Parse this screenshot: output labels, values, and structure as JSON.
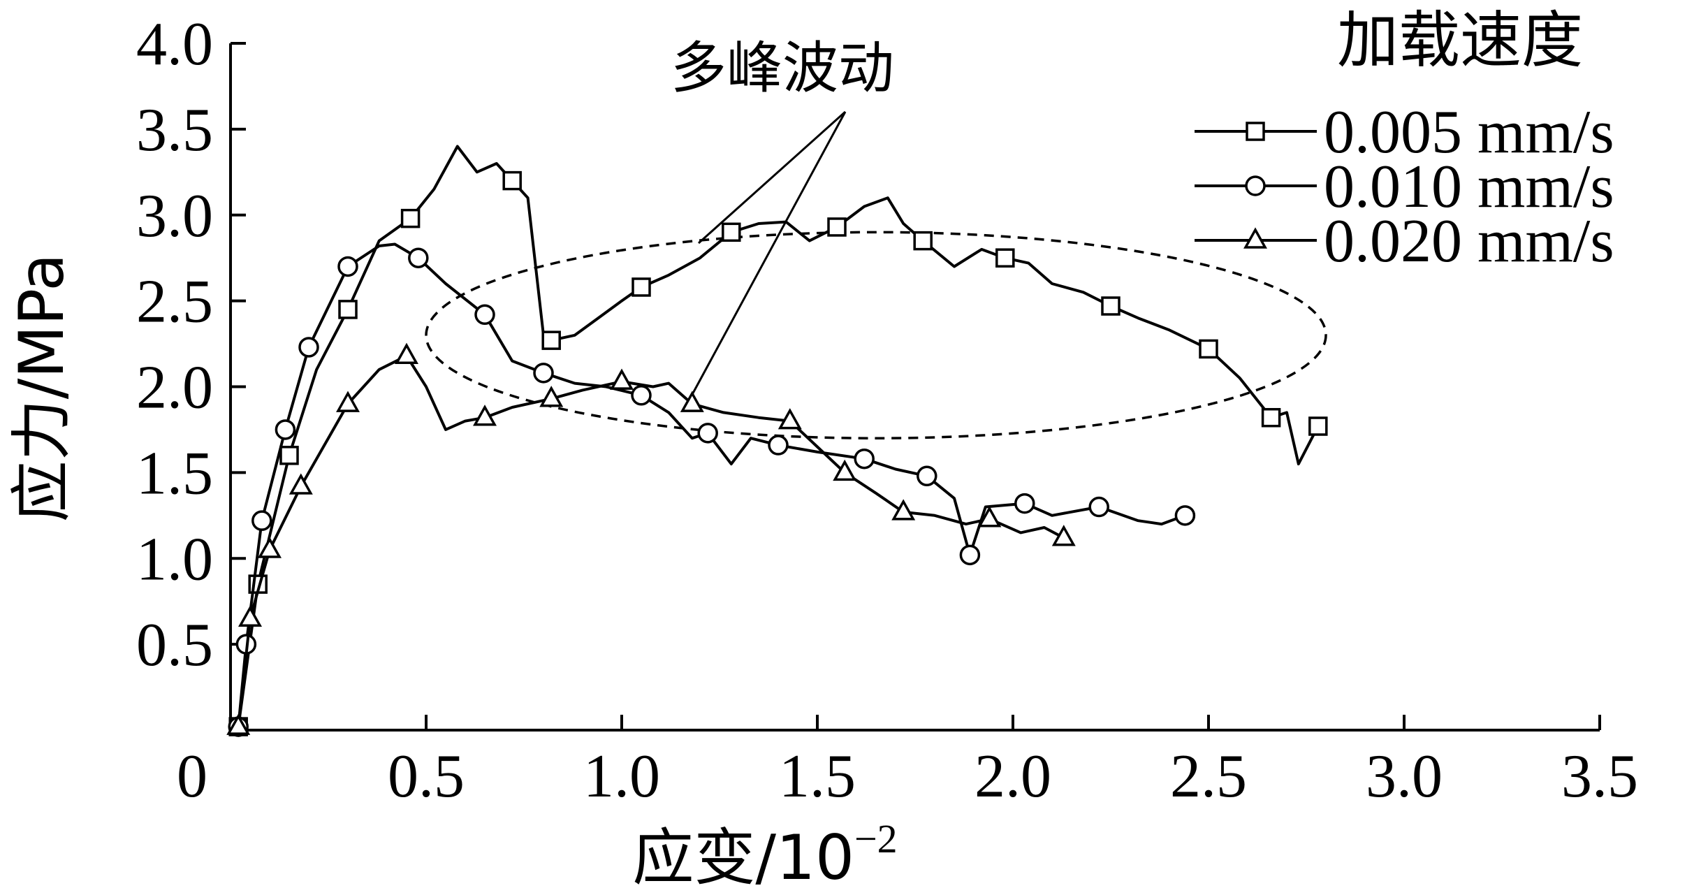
{
  "chart_data": {
    "type": "line",
    "xlabel": "应变/10",
    "xlabel_exp": "−2",
    "ylabel": "应力/MPa",
    "xlim": [
      0,
      3.5
    ],
    "ylim": [
      0,
      4.0
    ],
    "xticks": [
      "0",
      "0.5",
      "1.0",
      "1.5",
      "2.0",
      "2.5",
      "3.0",
      "3.5"
    ],
    "yticks": [
      "0.5",
      "1.0",
      "1.5",
      "2.0",
      "2.5",
      "3.0",
      "3.5",
      "4.0"
    ],
    "grid": false,
    "legend_title": "加载速度",
    "legend_position": "top-right",
    "annotation": "多峰波动",
    "series": [
      {
        "name": "0.005 mm/s",
        "marker": "square",
        "points": [
          [
            0.02,
            0.02
          ],
          [
            0.07,
            0.85
          ],
          [
            0.15,
            1.6
          ],
          [
            0.22,
            2.1
          ],
          [
            0.3,
            2.45
          ],
          [
            0.38,
            2.85
          ],
          [
            0.46,
            2.98
          ],
          [
            0.52,
            3.15
          ],
          [
            0.58,
            3.4
          ],
          [
            0.63,
            3.25
          ],
          [
            0.68,
            3.3
          ],
          [
            0.72,
            3.2
          ],
          [
            0.76,
            3.1
          ],
          [
            0.78,
            2.7
          ],
          [
            0.8,
            2.3
          ],
          [
            0.82,
            2.27
          ],
          [
            0.88,
            2.3
          ],
          [
            0.94,
            2.4
          ],
          [
            1.0,
            2.5
          ],
          [
            1.05,
            2.58
          ],
          [
            1.12,
            2.65
          ],
          [
            1.2,
            2.75
          ],
          [
            1.28,
            2.9
          ],
          [
            1.35,
            2.95
          ],
          [
            1.42,
            2.96
          ],
          [
            1.48,
            2.85
          ],
          [
            1.55,
            2.93
          ],
          [
            1.62,
            3.05
          ],
          [
            1.68,
            3.1
          ],
          [
            1.72,
            2.95
          ],
          [
            1.77,
            2.85
          ],
          [
            1.85,
            2.7
          ],
          [
            1.92,
            2.8
          ],
          [
            1.98,
            2.75
          ],
          [
            2.04,
            2.72
          ],
          [
            2.1,
            2.6
          ],
          [
            2.18,
            2.55
          ],
          [
            2.25,
            2.47
          ],
          [
            2.32,
            2.4
          ],
          [
            2.4,
            2.33
          ],
          [
            2.5,
            2.22
          ],
          [
            2.58,
            2.05
          ],
          [
            2.66,
            1.82
          ],
          [
            2.7,
            1.85
          ],
          [
            2.73,
            1.55
          ],
          [
            2.78,
            1.77
          ]
        ],
        "marker_points": [
          [
            0.02,
            0.02
          ],
          [
            0.07,
            0.85
          ],
          [
            0.15,
            1.6
          ],
          [
            0.3,
            2.45
          ],
          [
            0.46,
            2.98
          ],
          [
            0.72,
            3.2
          ],
          [
            0.82,
            2.27
          ],
          [
            1.05,
            2.58
          ],
          [
            1.28,
            2.9
          ],
          [
            1.55,
            2.93
          ],
          [
            1.77,
            2.85
          ],
          [
            1.98,
            2.75
          ],
          [
            2.25,
            2.47
          ],
          [
            2.5,
            2.22
          ],
          [
            2.66,
            1.82
          ],
          [
            2.78,
            1.77
          ]
        ]
      },
      {
        "name": "0.010 mm/s",
        "marker": "circle",
        "points": [
          [
            0.02,
            0.02
          ],
          [
            0.04,
            0.5
          ],
          [
            0.08,
            1.22
          ],
          [
            0.14,
            1.75
          ],
          [
            0.2,
            2.23
          ],
          [
            0.3,
            2.7
          ],
          [
            0.38,
            2.82
          ],
          [
            0.42,
            2.83
          ],
          [
            0.48,
            2.75
          ],
          [
            0.55,
            2.6
          ],
          [
            0.65,
            2.42
          ],
          [
            0.72,
            2.15
          ],
          [
            0.8,
            2.08
          ],
          [
            0.88,
            2.02
          ],
          [
            0.96,
            2.0
          ],
          [
            1.05,
            1.95
          ],
          [
            1.12,
            1.85
          ],
          [
            1.18,
            1.7
          ],
          [
            1.22,
            1.73
          ],
          [
            1.28,
            1.55
          ],
          [
            1.33,
            1.7
          ],
          [
            1.4,
            1.66
          ],
          [
            1.5,
            1.62
          ],
          [
            1.62,
            1.58
          ],
          [
            1.7,
            1.52
          ],
          [
            1.78,
            1.48
          ],
          [
            1.85,
            1.35
          ],
          [
            1.89,
            1.02
          ],
          [
            1.93,
            1.3
          ],
          [
            2.03,
            1.32
          ],
          [
            2.1,
            1.25
          ],
          [
            2.22,
            1.3
          ],
          [
            2.32,
            1.22
          ],
          [
            2.38,
            1.2
          ],
          [
            2.44,
            1.25
          ]
        ],
        "marker_points": [
          [
            0.02,
            0.02
          ],
          [
            0.04,
            0.5
          ],
          [
            0.08,
            1.22
          ],
          [
            0.14,
            1.75
          ],
          [
            0.2,
            2.23
          ],
          [
            0.3,
            2.7
          ],
          [
            0.48,
            2.75
          ],
          [
            0.65,
            2.42
          ],
          [
            0.8,
            2.08
          ],
          [
            1.05,
            1.95
          ],
          [
            1.22,
            1.73
          ],
          [
            1.4,
            1.66
          ],
          [
            1.62,
            1.58
          ],
          [
            1.78,
            1.48
          ],
          [
            1.89,
            1.02
          ],
          [
            2.03,
            1.32
          ],
          [
            2.22,
            1.3
          ],
          [
            2.44,
            1.25
          ]
        ]
      },
      {
        "name": "0.020 mm/s",
        "marker": "triangle",
        "points": [
          [
            0.02,
            0.02
          ],
          [
            0.05,
            0.65
          ],
          [
            0.1,
            1.05
          ],
          [
            0.18,
            1.42
          ],
          [
            0.25,
            1.7
          ],
          [
            0.3,
            1.9
          ],
          [
            0.38,
            2.1
          ],
          [
            0.45,
            2.18
          ],
          [
            0.5,
            2.0
          ],
          [
            0.55,
            1.75
          ],
          [
            0.6,
            1.8
          ],
          [
            0.65,
            1.82
          ],
          [
            0.72,
            1.88
          ],
          [
            0.82,
            1.93
          ],
          [
            0.9,
            1.98
          ],
          [
            1.0,
            2.03
          ],
          [
            1.08,
            2.0
          ],
          [
            1.12,
            2.02
          ],
          [
            1.18,
            1.9
          ],
          [
            1.26,
            1.85
          ],
          [
            1.35,
            1.82
          ],
          [
            1.43,
            1.8
          ],
          [
            1.5,
            1.65
          ],
          [
            1.57,
            1.5
          ],
          [
            1.65,
            1.38
          ],
          [
            1.72,
            1.27
          ],
          [
            1.8,
            1.25
          ],
          [
            1.88,
            1.2
          ],
          [
            1.94,
            1.23
          ],
          [
            2.02,
            1.15
          ],
          [
            2.08,
            1.18
          ],
          [
            2.13,
            1.12
          ]
        ],
        "marker_points": [
          [
            0.02,
            0.02
          ],
          [
            0.05,
            0.65
          ],
          [
            0.1,
            1.05
          ],
          [
            0.18,
            1.42
          ],
          [
            0.3,
            1.9
          ],
          [
            0.45,
            2.18
          ],
          [
            0.65,
            1.82
          ],
          [
            0.82,
            1.93
          ],
          [
            1.0,
            2.03
          ],
          [
            1.18,
            1.9
          ],
          [
            1.43,
            1.8
          ],
          [
            1.57,
            1.5
          ],
          [
            1.72,
            1.27
          ],
          [
            1.94,
            1.23
          ],
          [
            2.13,
            1.12
          ]
        ]
      }
    ],
    "ellipse": {
      "cx": 1.65,
      "cy": 2.3,
      "rx": 1.15,
      "ry": 0.6
    }
  }
}
